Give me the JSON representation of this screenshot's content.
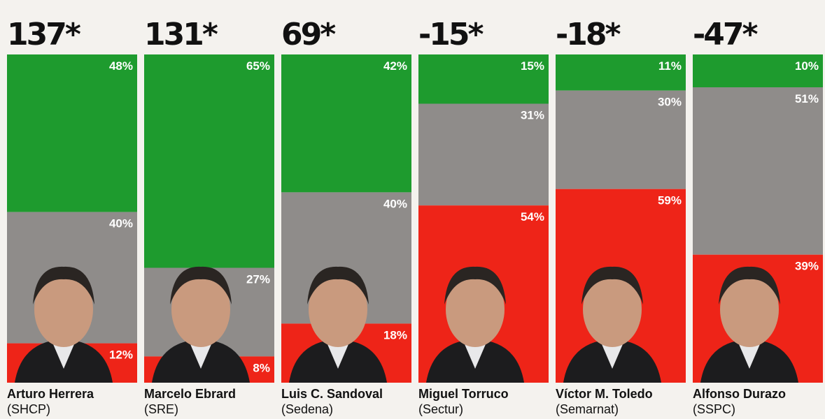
{
  "chart_data": {
    "type": "bar",
    "stacked": true,
    "categories": [
      "Arturo Herrera",
      "Marcelo Ebrard",
      "Luis C. Sandoval",
      "Miguel Torruco",
      "Víctor M. Toledo",
      "Alfonso Durazo"
    ],
    "agencies": [
      "(SHCP)",
      "(SRE)",
      "(Sedena)",
      "(Sectur)",
      "(Semarnat)",
      "(SSPC)"
    ],
    "net": {
      "values": [
        137,
        131,
        69,
        -15,
        -18,
        -47
      ],
      "value_labels": [
        "137*",
        "131*",
        "69*",
        "-15*",
        "-18*",
        "-47*"
      ]
    },
    "series": [
      {
        "color": "#1e9b2e",
        "values": [
          48,
          65,
          42,
          15,
          11,
          10
        ],
        "value_labels": [
          "48%",
          "65%",
          "42%",
          "15%",
          "11%",
          "10%"
        ]
      },
      {
        "color": "#8f8c8a",
        "values": [
          40,
          27,
          40,
          31,
          30,
          51
        ],
        "value_labels": [
          "40%",
          "27%",
          "40%",
          "31%",
          "30%",
          "51%"
        ]
      },
      {
        "color": "#ee2418",
        "values": [
          12,
          8,
          18,
          54,
          59,
          39
        ],
        "value_labels": [
          "12%",
          "8%",
          "18%",
          "54%",
          "59%",
          "39%"
        ]
      }
    ]
  }
}
